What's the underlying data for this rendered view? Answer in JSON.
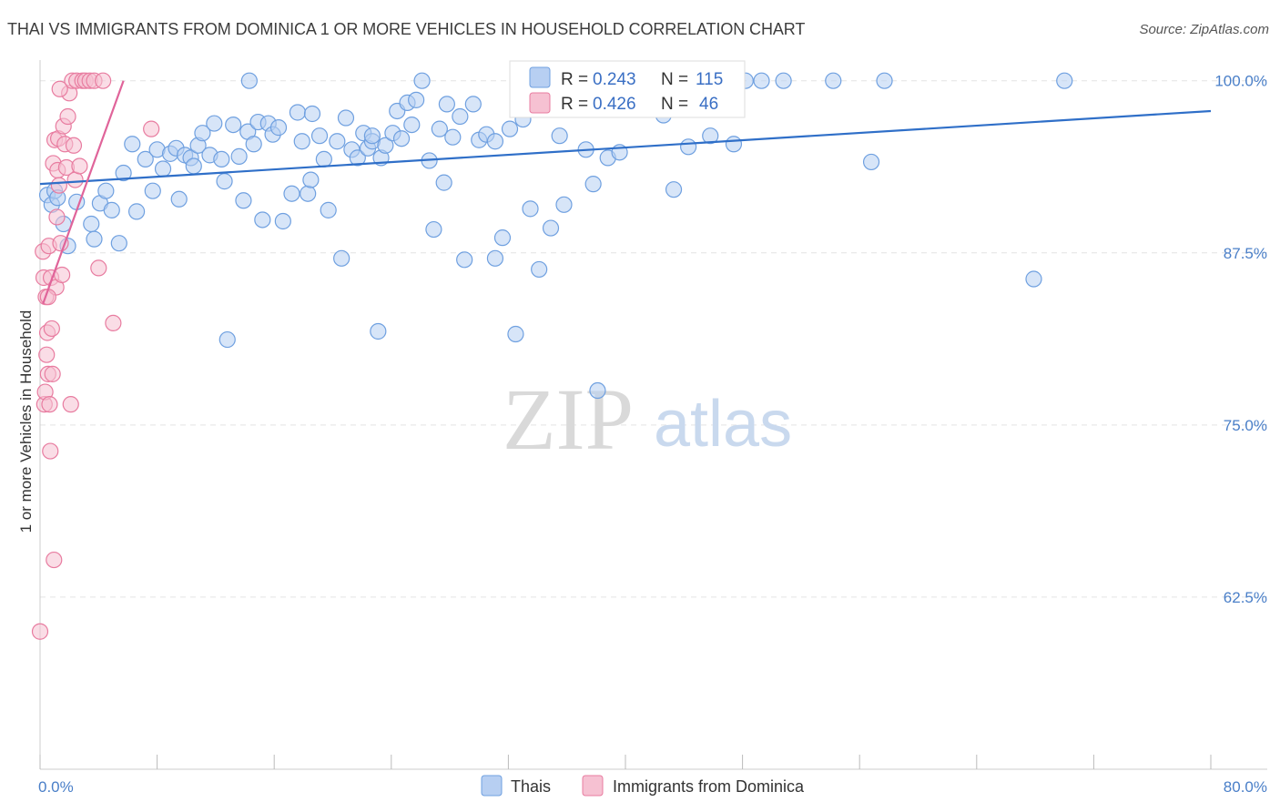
{
  "title": "THAI VS IMMIGRANTS FROM DOMINICA 1 OR MORE VEHICLES IN HOUSEHOLD CORRELATION CHART",
  "source": "Source: ZipAtlas.com",
  "watermark": {
    "zip": "ZIP",
    "atlas": "atlas"
  },
  "colors": {
    "blue": "#6fa0e0",
    "blue_fill": "#b7cff2",
    "pink": "#e87ca0",
    "pink_fill": "#f6c1d2",
    "blue_line": "#2f6fc8",
    "pink_line": "#e0649a"
  },
  "legend": {
    "r_label": "R =",
    "n_label": "N =",
    "thais": {
      "r": "0.243",
      "n": "115"
    },
    "dominica": {
      "r": "0.426",
      "n": "46"
    }
  },
  "bottom_legend": {
    "thais": "Thais",
    "dominica": "Immigrants from Dominica"
  },
  "chart_data": {
    "type": "scatter",
    "ylabel": "1 or more Vehicles in Household",
    "xlim": [
      0,
      80
    ],
    "ylim": [
      50.0,
      101.5
    ],
    "x_tick_labels": [
      "0.0%",
      "80.0%"
    ],
    "y_ticks": [
      100.0,
      87.5,
      75.0,
      62.5
    ],
    "y_tick_labels": [
      "100.0%",
      "87.5%",
      "75.0%",
      "62.5%"
    ],
    "grid": true,
    "series": [
      {
        "name": "Thais",
        "trend": {
          "x": [
            0,
            80
          ],
          "y": [
            92.5,
            97.8
          ]
        },
        "points": [
          [
            0.5,
            91.7
          ],
          [
            0.8,
            91.0
          ],
          [
            1.0,
            92.0
          ],
          [
            1.2,
            91.5
          ],
          [
            1.6,
            89.6
          ],
          [
            1.9,
            88.0
          ],
          [
            2.5,
            91.2
          ],
          [
            3.5,
            89.6
          ],
          [
            3.7,
            88.5
          ],
          [
            4.1,
            91.1
          ],
          [
            4.5,
            92.0
          ],
          [
            4.9,
            90.6
          ],
          [
            5.4,
            88.2
          ],
          [
            5.7,
            93.3
          ],
          [
            6.3,
            95.4
          ],
          [
            6.6,
            90.5
          ],
          [
            7.2,
            94.3
          ],
          [
            7.7,
            92.0
          ],
          [
            8.0,
            95.0
          ],
          [
            8.4,
            93.6
          ],
          [
            8.9,
            94.7
          ],
          [
            9.3,
            95.1
          ],
          [
            9.5,
            91.4
          ],
          [
            9.9,
            94.6
          ],
          [
            10.3,
            94.4
          ],
          [
            10.5,
            93.8
          ],
          [
            10.8,
            95.3
          ],
          [
            11.1,
            96.2
          ],
          [
            11.6,
            94.6
          ],
          [
            11.9,
            96.9
          ],
          [
            12.4,
            94.3
          ],
          [
            12.6,
            92.7
          ],
          [
            12.8,
            81.2
          ],
          [
            13.2,
            96.8
          ],
          [
            13.6,
            94.5
          ],
          [
            13.9,
            91.3
          ],
          [
            14.2,
            96.3
          ],
          [
            14.6,
            95.4
          ],
          [
            14.9,
            97.0
          ],
          [
            15.2,
            89.9
          ],
          [
            15.6,
            96.9
          ],
          [
            15.9,
            96.1
          ],
          [
            16.3,
            96.6
          ],
          [
            16.6,
            89.8
          ],
          [
            17.2,
            91.8
          ],
          [
            17.6,
            97.7
          ],
          [
            17.9,
            95.6
          ],
          [
            18.3,
            91.8
          ],
          [
            18.6,
            97.6
          ],
          [
            19.1,
            96.0
          ],
          [
            19.4,
            94.3
          ],
          [
            19.7,
            90.6
          ],
          [
            20.3,
            95.6
          ],
          [
            20.6,
            87.1
          ],
          [
            20.9,
            97.3
          ],
          [
            21.3,
            95.0
          ],
          [
            21.7,
            94.4
          ],
          [
            22.1,
            96.2
          ],
          [
            22.4,
            95.1
          ],
          [
            22.7,
            95.6
          ],
          [
            23.1,
            81.8
          ],
          [
            23.3,
            94.4
          ],
          [
            23.6,
            95.3
          ],
          [
            24.1,
            96.2
          ],
          [
            24.4,
            97.8
          ],
          [
            24.7,
            95.8
          ],
          [
            25.1,
            98.4
          ],
          [
            25.4,
            96.8
          ],
          [
            25.7,
            98.6
          ],
          [
            26.1,
            100.0
          ],
          [
            26.6,
            94.2
          ],
          [
            26.9,
            89.2
          ],
          [
            27.3,
            96.5
          ],
          [
            27.6,
            92.6
          ],
          [
            28.2,
            95.9
          ],
          [
            28.7,
            97.4
          ],
          [
            29.0,
            87.0
          ],
          [
            29.6,
            98.3
          ],
          [
            30.0,
            95.7
          ],
          [
            30.5,
            96.1
          ],
          [
            31.1,
            87.1
          ],
          [
            31.6,
            88.6
          ],
          [
            32.1,
            96.5
          ],
          [
            32.5,
            81.6
          ],
          [
            33.0,
            97.2
          ],
          [
            33.5,
            90.7
          ],
          [
            34.1,
            86.3
          ],
          [
            34.9,
            89.3
          ],
          [
            35.5,
            96.0
          ],
          [
            36.1,
            100.0
          ],
          [
            37.3,
            95.0
          ],
          [
            37.8,
            92.5
          ],
          [
            38.1,
            77.5
          ],
          [
            38.8,
            94.4
          ],
          [
            39.6,
            94.8
          ],
          [
            40.2,
            100.0
          ],
          [
            41.5,
            100.0
          ],
          [
            43.3,
            92.1
          ],
          [
            44.3,
            95.2
          ],
          [
            45.8,
            96.0
          ],
          [
            47.4,
            95.4
          ],
          [
            48.2,
            100.0
          ],
          [
            49.3,
            100.0
          ],
          [
            50.8,
            100.0
          ],
          [
            54.2,
            100.0
          ],
          [
            56.8,
            94.1
          ],
          [
            57.7,
            100.0
          ],
          [
            70.0,
            100.0
          ],
          [
            67.9,
            85.6
          ],
          [
            42.6,
            97.5
          ],
          [
            34.5,
            98.0
          ],
          [
            27.8,
            98.3
          ],
          [
            22.7,
            96.0
          ],
          [
            31.1,
            95.6
          ],
          [
            18.5,
            92.8
          ],
          [
            35.8,
            91.0
          ],
          [
            14.3,
            100.0
          ]
        ]
      },
      {
        "name": "Immigrants from Dominica",
        "trend": {
          "x": [
            0.2,
            5.7
          ],
          "y": [
            83.8,
            100.0
          ]
        },
        "points": [
          [
            0.0,
            60.0
          ],
          [
            0.2,
            87.6
          ],
          [
            0.25,
            85.7
          ],
          [
            0.3,
            76.5
          ],
          [
            0.35,
            77.4
          ],
          [
            0.4,
            84.3
          ],
          [
            0.45,
            80.1
          ],
          [
            0.5,
            81.7
          ],
          [
            0.55,
            78.7
          ],
          [
            0.6,
            88.0
          ],
          [
            0.65,
            76.5
          ],
          [
            0.7,
            73.1
          ],
          [
            0.75,
            85.7
          ],
          [
            0.8,
            82.0
          ],
          [
            0.85,
            78.7
          ],
          [
            0.9,
            94.0
          ],
          [
            0.95,
            65.2
          ],
          [
            1.0,
            95.7
          ],
          [
            1.1,
            85.0
          ],
          [
            1.2,
            93.5
          ],
          [
            1.25,
            95.8
          ],
          [
            1.3,
            92.4
          ],
          [
            1.4,
            88.2
          ],
          [
            1.5,
            85.9
          ],
          [
            1.6,
            96.7
          ],
          [
            1.7,
            95.4
          ],
          [
            1.8,
            93.7
          ],
          [
            1.9,
            97.4
          ],
          [
            2.0,
            99.1
          ],
          [
            2.1,
            76.5
          ],
          [
            2.2,
            100.0
          ],
          [
            2.3,
            95.3
          ],
          [
            2.4,
            92.8
          ],
          [
            2.5,
            100.0
          ],
          [
            2.7,
            93.8
          ],
          [
            2.9,
            100.0
          ],
          [
            3.1,
            100.0
          ],
          [
            3.4,
            100.0
          ],
          [
            3.7,
            100.0
          ],
          [
            4.0,
            86.4
          ],
          [
            4.3,
            100.0
          ],
          [
            5.0,
            82.4
          ],
          [
            7.6,
            96.5
          ],
          [
            1.35,
            99.4
          ],
          [
            0.55,
            84.3
          ],
          [
            1.15,
            90.1
          ]
        ]
      }
    ]
  }
}
